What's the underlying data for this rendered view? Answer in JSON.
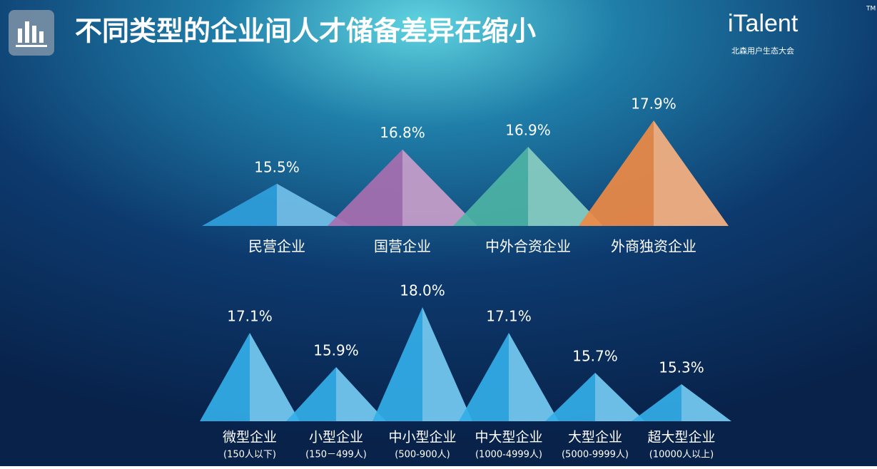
{
  "title": "不同类型的企业间人才储备差异在缩小",
  "logo": {
    "brand": "iTalent",
    "mark": "TM",
    "subtitle": "北森用户生态大会"
  },
  "chart_data": [
    {
      "type": "triangle",
      "categories": [
        "民营企业",
        "国营企业",
        "中外合资企业",
        "外商独资企业"
      ],
      "values": [
        15.5,
        16.8,
        16.9,
        17.9
      ],
      "value_labels": [
        "15.5%",
        "16.8%",
        "16.9%",
        "17.9%"
      ],
      "colors": [
        "#2f9fdc",
        "#a86fb0",
        "#4db3a4",
        "#ee8a45"
      ]
    },
    {
      "type": "triangle",
      "categories": [
        "微型企业",
        "小型企业",
        "中小型企业",
        "中大型企业",
        "大型企业",
        "超大型企业"
      ],
      "sublabels": [
        "(150人以下)",
        "(150－499人)",
        "(500-900人)",
        "(1000-4999人)",
        "(5000-9999人)",
        "(10000人以上)"
      ],
      "values": [
        17.1,
        15.9,
        18.0,
        17.1,
        15.7,
        15.3
      ],
      "value_labels": [
        "17.1%",
        "15.9%",
        "18.0%",
        "17.1%",
        "15.7%",
        "15.3%"
      ],
      "colors": [
        "#33aee8",
        "#33aee8",
        "#33aee8",
        "#33aee8",
        "#33aee8",
        "#33aee8"
      ]
    }
  ]
}
